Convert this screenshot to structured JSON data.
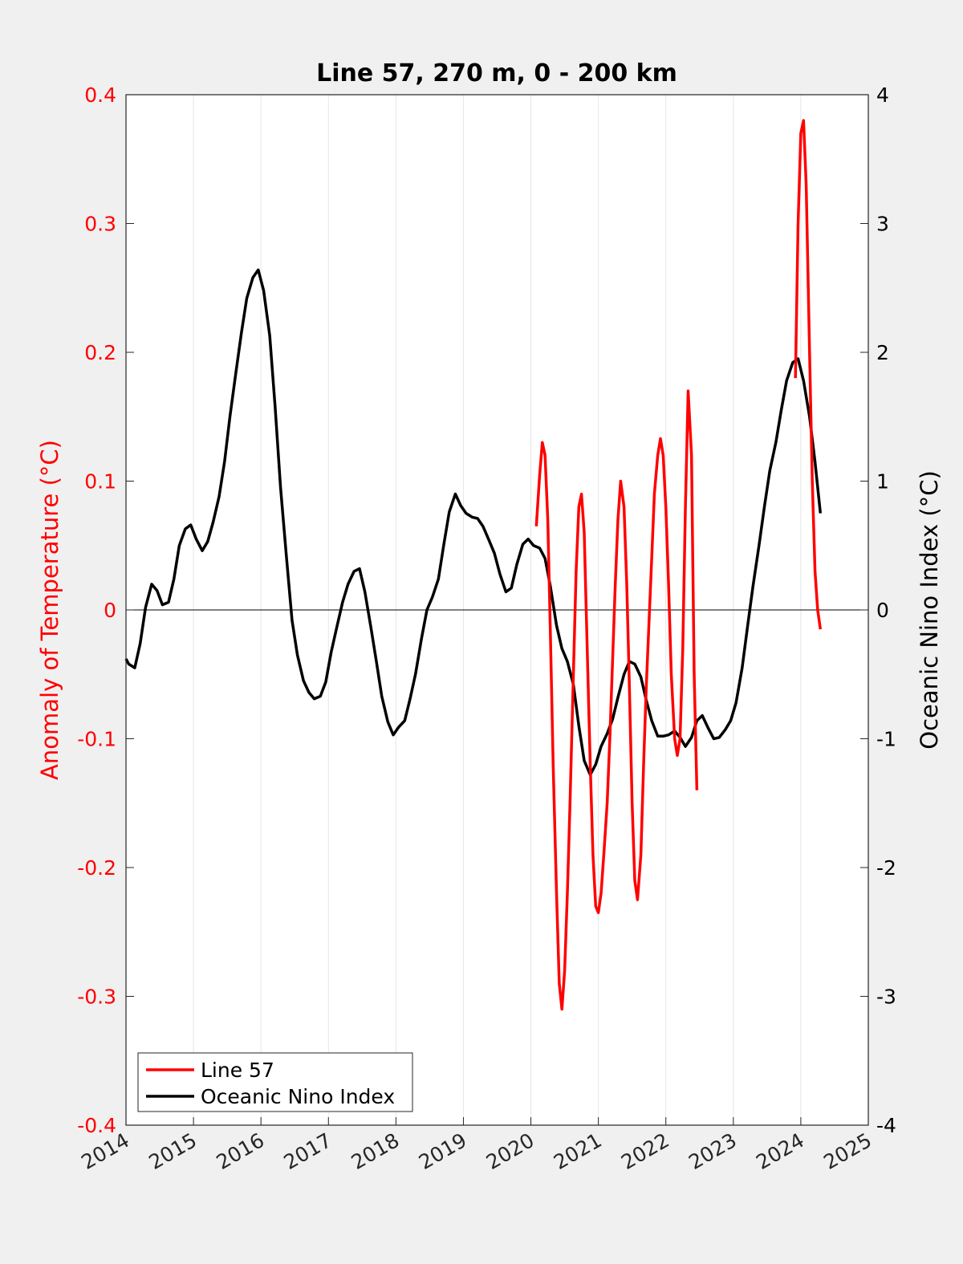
{
  "chart_data": {
    "type": "line",
    "title": "Line 57, 270 m, 0 - 200 km",
    "xlabel": "",
    "ylabel_left": "Anomaly of Temperature (°C)",
    "ylabel_right": "Oceanic Nino Index (°C)",
    "xlim": [
      2014,
      2025
    ],
    "ylim_left": [
      -0.4,
      0.4
    ],
    "ylim_right": [
      -4,
      4
    ],
    "x_ticks": [
      "2014",
      "2015",
      "2016",
      "2017",
      "2018",
      "2019",
      "2020",
      "2021",
      "2022",
      "2023",
      "2024",
      "2025"
    ],
    "y_ticks_left": [
      "0.4",
      "0.3",
      "0.2",
      "0.1",
      "0",
      "-0.1",
      "-0.2",
      "-0.3",
      "-0.4"
    ],
    "y_ticks_right": [
      "4",
      "3",
      "2",
      "1",
      "0",
      "-1",
      "-2",
      "-3",
      "-4"
    ],
    "grid": "vertical",
    "zero_line": true,
    "legend_placement": "bottom-left",
    "colors": {
      "line57": "#ff0000",
      "oni": "#000000",
      "left_axis": "#ff0000",
      "background": "#f0f0f0",
      "plot_bg": "#ffffff"
    },
    "series": [
      {
        "name": "Line 57",
        "axis": "left",
        "color": "#ff0000",
        "segments": [
          [
            [
              2020.08,
              0.065
            ],
            [
              2020.13,
              0.105
            ],
            [
              2020.17,
              0.13
            ],
            [
              2020.21,
              0.12
            ],
            [
              2020.25,
              0.07
            ],
            [
              2020.29,
              -0.02
            ],
            [
              2020.33,
              -0.12
            ],
            [
              2020.38,
              -0.22
            ],
            [
              2020.42,
              -0.29
            ],
            [
              2020.46,
              -0.31
            ],
            [
              2020.5,
              -0.28
            ],
            [
              2020.54,
              -0.22
            ],
            [
              2020.58,
              -0.15
            ],
            [
              2020.63,
              -0.05
            ],
            [
              2020.67,
              0.03
            ],
            [
              2020.71,
              0.08
            ],
            [
              2020.75,
              0.09
            ],
            [
              2020.79,
              0.06
            ],
            [
              2020.83,
              -0.02
            ],
            [
              2020.88,
              -0.12
            ],
            [
              2020.92,
              -0.19
            ],
            [
              2020.96,
              -0.23
            ],
            [
              2021.0,
              -0.235
            ],
            [
              2021.04,
              -0.22
            ],
            [
              2021.08,
              -0.19
            ],
            [
              2021.13,
              -0.15
            ],
            [
              2021.17,
              -0.1
            ],
            [
              2021.21,
              -0.04
            ],
            [
              2021.25,
              0.02
            ],
            [
              2021.29,
              0.07
            ],
            [
              2021.33,
              0.1
            ],
            [
              2021.38,
              0.08
            ],
            [
              2021.42,
              0.02
            ],
            [
              2021.46,
              -0.06
            ],
            [
              2021.5,
              -0.15
            ],
            [
              2021.54,
              -0.21
            ],
            [
              2021.58,
              -0.225
            ],
            [
              2021.63,
              -0.19
            ],
            [
              2021.67,
              -0.12
            ],
            [
              2021.71,
              -0.06
            ],
            [
              2021.75,
              -0.01
            ],
            [
              2021.79,
              0.04
            ],
            [
              2021.83,
              0.09
            ],
            [
              2021.88,
              0.12
            ],
            [
              2021.92,
              0.133
            ],
            [
              2021.96,
              0.12
            ],
            [
              2022.0,
              0.08
            ],
            [
              2022.04,
              0.02
            ],
            [
              2022.08,
              -0.05
            ],
            [
              2022.13,
              -0.1
            ],
            [
              2022.17,
              -0.113
            ],
            [
              2022.21,
              -0.1
            ],
            [
              2022.25,
              -0.03
            ],
            [
              2022.29,
              0.08
            ],
            [
              2022.33,
              0.17
            ],
            [
              2022.38,
              0.12
            ],
            [
              2022.42,
              -0.05
            ],
            [
              2022.46,
              -0.14
            ]
          ],
          [
            [
              2023.92,
              0.18
            ],
            [
              2023.96,
              0.3
            ],
            [
              2024.0,
              0.37
            ],
            [
              2024.04,
              0.38
            ],
            [
              2024.08,
              0.33
            ],
            [
              2024.13,
              0.2
            ],
            [
              2024.17,
              0.1
            ],
            [
              2024.21,
              0.03
            ],
            [
              2024.25,
              0.0
            ],
            [
              2024.29,
              -0.015
            ]
          ]
        ]
      },
      {
        "name": "Oceanic Nino Index",
        "axis": "right",
        "color": "#000000",
        "segments": [
          [
            [
              2014.0,
              -0.38
            ],
            [
              2014.04,
              -0.42
            ],
            [
              2014.13,
              -0.45
            ],
            [
              2014.21,
              -0.26
            ],
            [
              2014.29,
              0.02
            ],
            [
              2014.38,
              0.2
            ],
            [
              2014.46,
              0.15
            ],
            [
              2014.54,
              0.04
            ],
            [
              2014.63,
              0.06
            ],
            [
              2014.71,
              0.24
            ],
            [
              2014.79,
              0.5
            ],
            [
              2014.88,
              0.63
            ],
            [
              2014.96,
              0.66
            ],
            [
              2015.04,
              0.55
            ],
            [
              2015.13,
              0.46
            ],
            [
              2015.21,
              0.53
            ],
            [
              2015.29,
              0.68
            ],
            [
              2015.38,
              0.88
            ],
            [
              2015.46,
              1.15
            ],
            [
              2015.54,
              1.5
            ],
            [
              2015.63,
              1.85
            ],
            [
              2015.71,
              2.15
            ],
            [
              2015.79,
              2.42
            ],
            [
              2015.88,
              2.58
            ],
            [
              2015.96,
              2.64
            ],
            [
              2016.04,
              2.48
            ],
            [
              2016.13,
              2.13
            ],
            [
              2016.21,
              1.58
            ],
            [
              2016.29,
              0.95
            ],
            [
              2016.38,
              0.4
            ],
            [
              2016.46,
              -0.08
            ],
            [
              2016.54,
              -0.35
            ],
            [
              2016.63,
              -0.55
            ],
            [
              2016.71,
              -0.64
            ],
            [
              2016.79,
              -0.69
            ],
            [
              2016.88,
              -0.67
            ],
            [
              2016.96,
              -0.56
            ],
            [
              2017.04,
              -0.33
            ],
            [
              2017.13,
              -0.12
            ],
            [
              2017.21,
              0.06
            ],
            [
              2017.29,
              0.2
            ],
            [
              2017.38,
              0.3
            ],
            [
              2017.46,
              0.32
            ],
            [
              2017.54,
              0.14
            ],
            [
              2017.63,
              -0.14
            ],
            [
              2017.71,
              -0.4
            ],
            [
              2017.79,
              -0.67
            ],
            [
              2017.88,
              -0.87
            ],
            [
              2017.96,
              -0.97
            ],
            [
              2018.04,
              -0.91
            ],
            [
              2018.13,
              -0.86
            ],
            [
              2018.21,
              -0.69
            ],
            [
              2018.29,
              -0.5
            ],
            [
              2018.38,
              -0.22
            ],
            [
              2018.46,
              0.0
            ],
            [
              2018.54,
              0.1
            ],
            [
              2018.63,
              0.24
            ],
            [
              2018.71,
              0.51
            ],
            [
              2018.79,
              0.76
            ],
            [
              2018.88,
              0.9
            ],
            [
              2018.96,
              0.81
            ],
            [
              2019.04,
              0.75
            ],
            [
              2019.13,
              0.72
            ],
            [
              2019.21,
              0.71
            ],
            [
              2019.29,
              0.65
            ],
            [
              2019.38,
              0.54
            ],
            [
              2019.46,
              0.44
            ],
            [
              2019.54,
              0.28
            ],
            [
              2019.63,
              0.14
            ],
            [
              2019.71,
              0.17
            ],
            [
              2019.79,
              0.35
            ],
            [
              2019.88,
              0.51
            ],
            [
              2019.96,
              0.55
            ],
            [
              2020.04,
              0.5
            ],
            [
              2020.13,
              0.48
            ],
            [
              2020.21,
              0.4
            ],
            [
              2020.29,
              0.18
            ],
            [
              2020.38,
              -0.12
            ],
            [
              2020.46,
              -0.3
            ],
            [
              2020.54,
              -0.4
            ],
            [
              2020.63,
              -0.58
            ],
            [
              2020.71,
              -0.9
            ],
            [
              2020.79,
              -1.17
            ],
            [
              2020.88,
              -1.28
            ],
            [
              2020.96,
              -1.2
            ],
            [
              2021.04,
              -1.06
            ],
            [
              2021.13,
              -0.96
            ],
            [
              2021.21,
              -0.85
            ],
            [
              2021.29,
              -0.68
            ],
            [
              2021.38,
              -0.5
            ],
            [
              2021.46,
              -0.4
            ],
            [
              2021.54,
              -0.42
            ],
            [
              2021.63,
              -0.52
            ],
            [
              2021.71,
              -0.7
            ],
            [
              2021.79,
              -0.86
            ],
            [
              2021.88,
              -0.98
            ],
            [
              2021.96,
              -0.98
            ],
            [
              2022.04,
              -0.97
            ],
            [
              2022.13,
              -0.94
            ],
            [
              2022.21,
              -0.99
            ],
            [
              2022.29,
              -1.06
            ],
            [
              2022.38,
              -0.99
            ],
            [
              2022.46,
              -0.86
            ],
            [
              2022.54,
              -0.82
            ],
            [
              2022.63,
              -0.92
            ],
            [
              2022.71,
              -1.0
            ],
            [
              2022.79,
              -0.99
            ],
            [
              2022.88,
              -0.93
            ],
            [
              2022.96,
              -0.86
            ],
            [
              2023.04,
              -0.72
            ],
            [
              2023.13,
              -0.45
            ],
            [
              2023.21,
              -0.13
            ],
            [
              2023.29,
              0.18
            ],
            [
              2023.38,
              0.5
            ],
            [
              2023.46,
              0.8
            ],
            [
              2023.54,
              1.08
            ],
            [
              2023.63,
              1.3
            ],
            [
              2023.71,
              1.55
            ],
            [
              2023.79,
              1.78
            ],
            [
              2023.88,
              1.92
            ],
            [
              2023.96,
              1.95
            ],
            [
              2024.04,
              1.78
            ],
            [
              2024.13,
              1.5
            ],
            [
              2024.21,
              1.15
            ],
            [
              2024.29,
              0.75
            ]
          ]
        ]
      }
    ]
  }
}
